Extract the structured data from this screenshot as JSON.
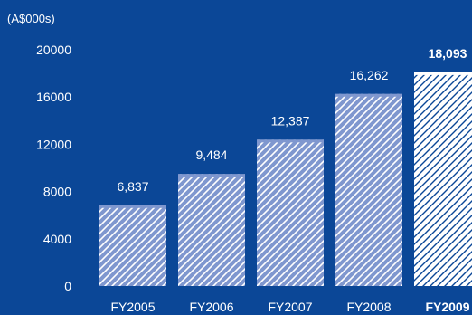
{
  "chart_data": {
    "type": "bar",
    "unit_label": "(A$000s)",
    "categories": [
      "FY2005",
      "FY2006",
      "FY2007",
      "FY2008",
      "FY2009"
    ],
    "values": [
      6837,
      9484,
      12387,
      16262,
      18093
    ],
    "value_labels": [
      "6,837",
      "9,484",
      "12,387",
      "16,262",
      "18,093"
    ],
    "highlight_index": 4,
    "yticks": [
      0,
      4000,
      8000,
      12000,
      16000,
      20000
    ],
    "ylim": [
      0,
      20000
    ],
    "grid": false,
    "colors": {
      "background": "#0b4797",
      "bar_fill": "#7f97cf",
      "bar_stripe": "#ffffff",
      "highlight_fill": "#ffffff",
      "highlight_stripe": "#0b4797",
      "text": "#ffffff"
    }
  }
}
